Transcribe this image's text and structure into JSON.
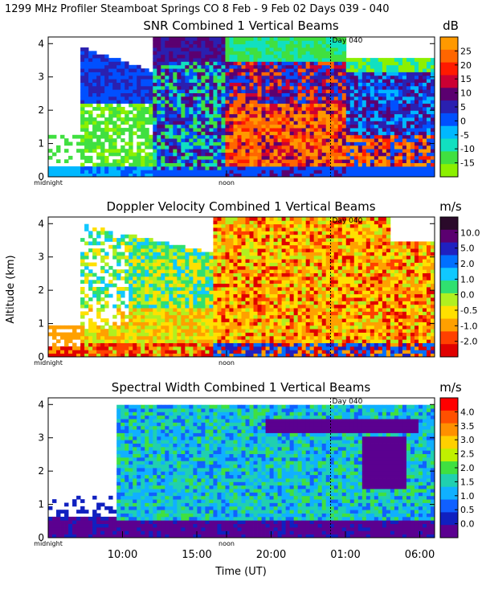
{
  "header": "1299 MHz Profiler  Steamboat Springs CO   8 Feb -  9 Feb 02 Days 039 - 040",
  "x_axis": {
    "label": "Time (UT)",
    "ticks": [
      "10:00",
      "15:00",
      "20:00",
      "01:00",
      "06:00"
    ],
    "tick_hours": [
      10,
      15,
      20,
      25,
      30
    ],
    "small_labels": [
      "midnight",
      "noon"
    ],
    "small_label_hours": [
      5,
      17
    ],
    "xlim": [
      5,
      31
    ],
    "day_marker_hour": 24,
    "day_marker_label": "Day 040"
  },
  "y_axis": {
    "label": "Altitude (km)",
    "ticks": [
      "0",
      "1",
      "2",
      "3",
      "4"
    ],
    "ylim": [
      0,
      4.2
    ]
  },
  "chart_data": [
    {
      "type": "heatmap",
      "title": "SNR Combined 1 Vertical Beams",
      "unit": "dB",
      "legend_labels": [
        "25",
        "20",
        "15",
        "10",
        "5",
        "0",
        "-5",
        "-10",
        "-15"
      ],
      "colors": [
        "#ff9900",
        "#ff6600",
        "#ff1a00",
        "#cc0033",
        "#5b0070",
        "#2a20b0",
        "#0050ff",
        "#00b8ff",
        "#11e0c0",
        "#40e040",
        "#8cf000"
      ]
    },
    {
      "type": "heatmap",
      "title": "Doppler Velocity Combined 1 Vertical Beams",
      "unit": "m/s",
      "legend_labels": [
        "10.0",
        "5.0",
        "2.0",
        "1.0",
        "0.0",
        "-0.5",
        "-1.0",
        "-2.0"
      ],
      "colors": [
        "#2a0a2a",
        "#5b0070",
        "#2020c0",
        "#0070ff",
        "#10c8ff",
        "#30e070",
        "#b0f020",
        "#ffe000",
        "#ffa000",
        "#ff4000",
        "#e00000"
      ]
    },
    {
      "type": "heatmap",
      "title": "Spectral Width Combined 1 Vertical Beams",
      "unit": "m/s",
      "legend_labels": [
        "4.0",
        "3.5",
        "3.0",
        "2.5",
        "2.0",
        "1.5",
        "1.0",
        "0.5",
        "0.0"
      ],
      "colors": [
        "#ff0000",
        "#ff5000",
        "#ff9000",
        "#ffd000",
        "#c0f000",
        "#40e040",
        "#20d0b0",
        "#10b0ff",
        "#1060ff",
        "#1020c0",
        "#5b0090"
      ]
    }
  ]
}
